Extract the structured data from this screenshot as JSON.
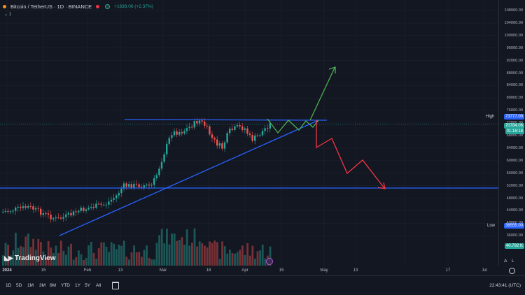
{
  "header": {
    "title": "Bitcoin / TetherUS · 1D · BINANCE",
    "change": "+1638.06 (+2.37%)",
    "indicators_count": "1"
  },
  "price_axis": {
    "labels": [
      "108000.00",
      "104000.00",
      "100000.00",
      "96000.00",
      "92000.00",
      "88000.00",
      "84000.00",
      "80000.00",
      "76000.00",
      "72000.00",
      "68000.00",
      "64000.00",
      "60000.00",
      "56000.00",
      "52000.00",
      "48000.00",
      "44000.00",
      "40000.00",
      "36000.00"
    ],
    "high_label": "High",
    "high_value": "73777.00",
    "current_value": "70784.06",
    "countdown": "01:16:18",
    "low_label": "Low",
    "low_value": "38555.00",
    "volume_value": "40.792 K"
  },
  "time_axis": [
    "2024",
    "15",
    "Feb",
    "13",
    "Mar",
    "18",
    "Apr",
    "15",
    "May",
    "13",
    "17",
    "Jul"
  ],
  "brand": "TradingView",
  "timeframes": [
    "1D",
    "5D",
    "1M",
    "3M",
    "6M",
    "YTD",
    "1Y",
    "5Y",
    "All"
  ],
  "clock": "22:43:41 (UTC)",
  "corner_buttons": {
    "auto": "A",
    "log": "L"
  },
  "colors": {
    "bull": "#26a69a",
    "bear": "#ef5350",
    "trendline": "#2962ff",
    "projection_up": "#4caf50",
    "projection_down": "#f23645",
    "background": "#131722"
  }
}
